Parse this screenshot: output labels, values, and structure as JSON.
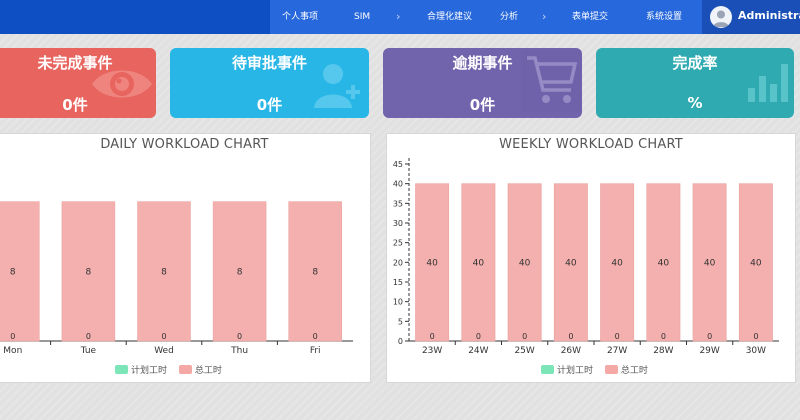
{
  "header": {
    "nav": [
      "个人事项",
      "SIM",
      "合理化建议",
      "分析",
      "表单提交",
      "系统设置"
    ],
    "user_name": "Administrator"
  },
  "cards": [
    {
      "title": "未完成事件",
      "value": "0件",
      "color": "#e8645e",
      "icon": "eye-icon"
    },
    {
      "title": "待审批事件",
      "value": "0件",
      "color": "#27b6e6",
      "icon": "user-add-icon"
    },
    {
      "title": "逾期事件",
      "value": "0件",
      "color": "#7263ad",
      "icon": "cart-icon"
    },
    {
      "title": "完成率",
      "value": "%",
      "color": "#2eaab0",
      "icon": "bar-chart-icon"
    }
  ],
  "daily": {
    "title": "DAILY WORKLOAD CHART",
    "legend": [
      "计划工时",
      "总工时"
    ],
    "legend_colors": [
      "#7de6b9",
      "#f4a9a6"
    ],
    "chart_data": {
      "type": "bar",
      "categories": [
        "Mon",
        "Tue",
        "Wed",
        "Thu",
        "Fri"
      ],
      "series": [
        {
          "name": "计划工时",
          "values": [
            0,
            0,
            0,
            0,
            0
          ],
          "color": "#7de6b9"
        },
        {
          "name": "总工时",
          "values": [
            8,
            8,
            8,
            8,
            8
          ],
          "color": "#f4b0ae"
        }
      ]
    }
  },
  "weekly": {
    "title": "WEEKLY WORKLOAD CHART",
    "legend": [
      "计划工时",
      "总工时"
    ],
    "legend_colors": [
      "#7de6b9",
      "#f4a9a6"
    ],
    "chart_data": {
      "type": "bar",
      "categories": [
        "23W",
        "24W",
        "25W",
        "26W",
        "27W",
        "28W",
        "29W",
        "30W"
      ],
      "ylim": [
        0,
        45
      ],
      "yticks": [
        0,
        5,
        10,
        15,
        20,
        25,
        30,
        35,
        40,
        45
      ],
      "series": [
        {
          "name": "计划工时",
          "values": [
            0,
            0,
            0,
            0,
            0,
            0,
            0,
            0
          ],
          "color": "#7de6b9"
        },
        {
          "name": "总工时",
          "values": [
            40,
            40,
            40,
            40,
            40,
            40,
            40,
            40
          ],
          "color": "#f4b0ae"
        }
      ]
    }
  }
}
